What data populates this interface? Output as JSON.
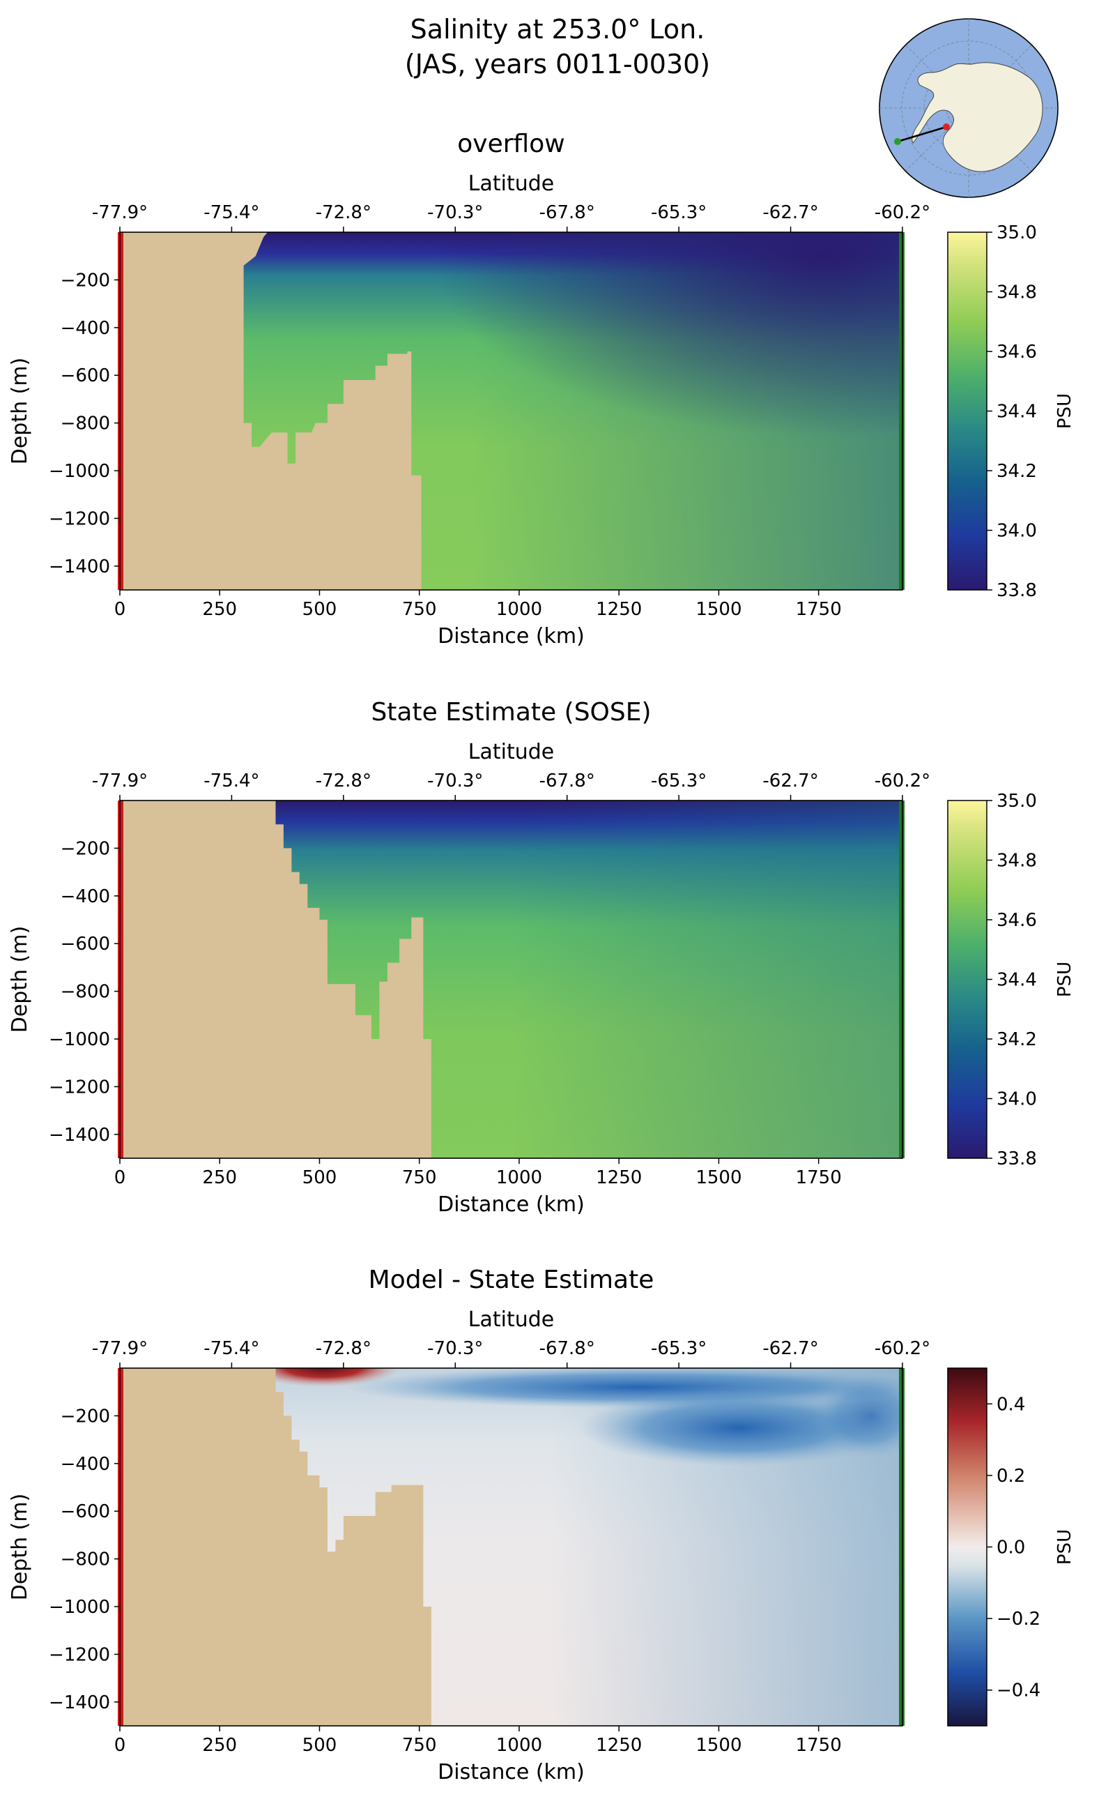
{
  "figure": {
    "title_line1": "Salinity at 253.0° Lon.",
    "title_line2": "(JAS, years 0011-0030)"
  },
  "inset_map": {
    "description_marker_colors": {
      "start": "#2a9d2a",
      "end": "#e02020",
      "line": "#000000"
    },
    "ocean_color": "#8fb0e0",
    "land_color": "#f2efdc"
  },
  "colors": {
    "land": "#d8c098",
    "start_bar": "#cc1a1a",
    "end_bar": "#1f7a1f"
  },
  "chart_data": [
    {
      "type": "heatmap",
      "title": "overflow",
      "xlabel": "Distance (km)",
      "ylabel": "Depth (m)",
      "top_xlabel": "Latitude",
      "xlim": [
        0,
        1960
      ],
      "ylim": [
        -1500,
        0
      ],
      "x_ticks": [
        0,
        250,
        500,
        750,
        1000,
        1250,
        1500,
        1750
      ],
      "y_ticks": [
        -200,
        -400,
        -600,
        -800,
        -1000,
        -1200,
        -1400
      ],
      "top_ticks": [
        "-77.9°",
        "-75.4°",
        "-72.8°",
        "-70.3°",
        "-67.8°",
        "-65.3°",
        "-62.7°",
        "-60.2°"
      ],
      "colorbar": {
        "label": "PSU",
        "min": 33.8,
        "max": 35.0,
        "ticks": [
          35.0,
          34.8,
          34.6,
          34.4,
          34.2,
          34.0,
          33.8
        ],
        "colormap": "haline"
      },
      "bathymetry": [
        [
          0,
          0
        ],
        [
          370,
          0
        ],
        [
          360,
          -20
        ],
        [
          350,
          -60
        ],
        [
          340,
          -100
        ],
        [
          310,
          -140
        ],
        [
          310,
          -800
        ],
        [
          330,
          -800
        ],
        [
          330,
          -900
        ],
        [
          350,
          -900
        ],
        [
          380,
          -840
        ],
        [
          420,
          -840
        ],
        [
          420,
          -970
        ],
        [
          440,
          -970
        ],
        [
          440,
          -840
        ],
        [
          480,
          -840
        ],
        [
          490,
          -800
        ],
        [
          520,
          -800
        ],
        [
          520,
          -720
        ],
        [
          560,
          -720
        ],
        [
          560,
          -620
        ],
        [
          640,
          -620
        ],
        [
          640,
          -560
        ],
        [
          670,
          -560
        ],
        [
          670,
          -510
        ],
        [
          720,
          -510
        ],
        [
          720,
          -500
        ],
        [
          730,
          -500
        ],
        [
          730,
          -1020
        ],
        [
          755,
          -1020
        ],
        [
          755,
          -1500
        ],
        [
          0,
          -1500
        ]
      ]
    },
    {
      "type": "heatmap",
      "title": "State Estimate (SOSE)",
      "xlabel": "Distance (km)",
      "ylabel": "Depth (m)",
      "top_xlabel": "Latitude",
      "xlim": [
        0,
        1960
      ],
      "ylim": [
        -1500,
        0
      ],
      "x_ticks": [
        0,
        250,
        500,
        750,
        1000,
        1250,
        1500,
        1750
      ],
      "y_ticks": [
        -200,
        -400,
        -600,
        -800,
        -1000,
        -1200,
        -1400
      ],
      "top_ticks": [
        "-77.9°",
        "-75.4°",
        "-72.8°",
        "-70.3°",
        "-67.8°",
        "-65.3°",
        "-62.7°",
        "-60.2°"
      ],
      "colorbar": {
        "label": "PSU",
        "min": 33.8,
        "max": 35.0,
        "ticks": [
          35.0,
          34.8,
          34.6,
          34.4,
          34.2,
          34.0,
          33.8
        ],
        "colormap": "haline"
      },
      "bathymetry": [
        [
          0,
          0
        ],
        [
          390,
          0
        ],
        [
          390,
          -100
        ],
        [
          410,
          -100
        ],
        [
          410,
          -200
        ],
        [
          430,
          -200
        ],
        [
          430,
          -300
        ],
        [
          450,
          -300
        ],
        [
          450,
          -350
        ],
        [
          470,
          -350
        ],
        [
          470,
          -450
        ],
        [
          500,
          -450
        ],
        [
          500,
          -500
        ],
        [
          520,
          -500
        ],
        [
          520,
          -680
        ],
        [
          520,
          -770
        ],
        [
          590,
          -770
        ],
        [
          590,
          -900
        ],
        [
          630,
          -900
        ],
        [
          630,
          -1000
        ],
        [
          650,
          -1000
        ],
        [
          650,
          -760
        ],
        [
          670,
          -760
        ],
        [
          670,
          -680
        ],
        [
          700,
          -680
        ],
        [
          700,
          -580
        ],
        [
          730,
          -580
        ],
        [
          730,
          -490
        ],
        [
          760,
          -490
        ],
        [
          760,
          -1000
        ],
        [
          780,
          -1000
        ],
        [
          780,
          -1500
        ],
        [
          0,
          -1500
        ]
      ]
    },
    {
      "type": "heatmap",
      "title": "Model - State Estimate",
      "xlabel": "Distance (km)",
      "ylabel": "Depth (m)",
      "top_xlabel": "Latitude",
      "xlim": [
        0,
        1960
      ],
      "ylim": [
        -1500,
        0
      ],
      "x_ticks": [
        0,
        250,
        500,
        750,
        1000,
        1250,
        1500,
        1750
      ],
      "y_ticks": [
        -200,
        -400,
        -600,
        -800,
        -1000,
        -1200,
        -1400
      ],
      "top_ticks": [
        "-77.9°",
        "-75.4°",
        "-72.8°",
        "-70.3°",
        "-67.8°",
        "-65.3°",
        "-62.7°",
        "-60.2°"
      ],
      "colorbar": {
        "label": "PSU",
        "min": -0.5,
        "max": 0.5,
        "ticks": [
          0.4,
          0.2,
          0.0,
          -0.2,
          -0.4
        ],
        "tick_labels": [
          "0.4",
          "0.2",
          "0.0",
          "−0.2",
          "−0.4"
        ],
        "colormap": "balance"
      },
      "bathymetry": [
        [
          0,
          0
        ],
        [
          390,
          0
        ],
        [
          390,
          -100
        ],
        [
          410,
          -100
        ],
        [
          410,
          -200
        ],
        [
          430,
          -200
        ],
        [
          430,
          -300
        ],
        [
          450,
          -300
        ],
        [
          450,
          -350
        ],
        [
          470,
          -350
        ],
        [
          470,
          -450
        ],
        [
          500,
          -450
        ],
        [
          500,
          -500
        ],
        [
          520,
          -500
        ],
        [
          520,
          -680
        ],
        [
          520,
          -770
        ],
        [
          540,
          -770
        ],
        [
          540,
          -720
        ],
        [
          560,
          -720
        ],
        [
          560,
          -620
        ],
        [
          640,
          -620
        ],
        [
          640,
          -520
        ],
        [
          680,
          -520
        ],
        [
          680,
          -490
        ],
        [
          760,
          -490
        ],
        [
          760,
          -1000
        ],
        [
          780,
          -1000
        ],
        [
          780,
          -1500
        ],
        [
          0,
          -1500
        ]
      ]
    }
  ]
}
